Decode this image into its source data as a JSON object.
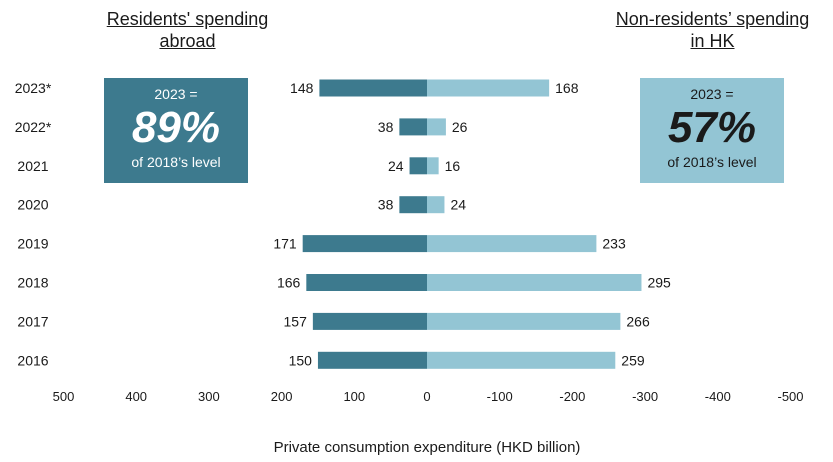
{
  "headers": {
    "residents": [
      "Residents' spending",
      "abroad"
    ],
    "nonresidents": [
      "Non-residents’ spending",
      "in HK"
    ]
  },
  "callouts": {
    "residents": {
      "line1": "2023 =",
      "value": "89%",
      "line3": "of 2018’s level"
    },
    "nonresidents": {
      "line1": "2023 =",
      "value": "57%",
      "line3": "of 2018’s level"
    }
  },
  "colors": {
    "residents": "#3d7a8e",
    "nonresidents": "#93c5d4"
  },
  "chart_data": {
    "type": "bar",
    "orientation": "horizontal-diverging",
    "categories": [
      "2023*",
      "2022*",
      "2021",
      "2020",
      "2019",
      "2018",
      "2017",
      "2016"
    ],
    "series": [
      {
        "name": "Residents' spending abroad",
        "values": [
          148,
          38,
          24,
          38,
          171,
          166,
          157,
          150
        ]
      },
      {
        "name": "Non-residents’ spending in HK",
        "values": [
          168,
          26,
          16,
          24,
          233,
          295,
          266,
          259
        ]
      }
    ],
    "xlabel": "Private consumption expenditure (HKD billion)",
    "xlim": [
      500,
      -500
    ],
    "xticks": [
      500,
      400,
      300,
      200,
      100,
      0,
      -100,
      -200,
      -300,
      -400,
      -500
    ],
    "xtick_labels": [
      "500",
      "400",
      "300",
      "200",
      "100",
      "0",
      "-100",
      "-200",
      "-300",
      "-400",
      "-500"
    ],
    "grid": false
  }
}
